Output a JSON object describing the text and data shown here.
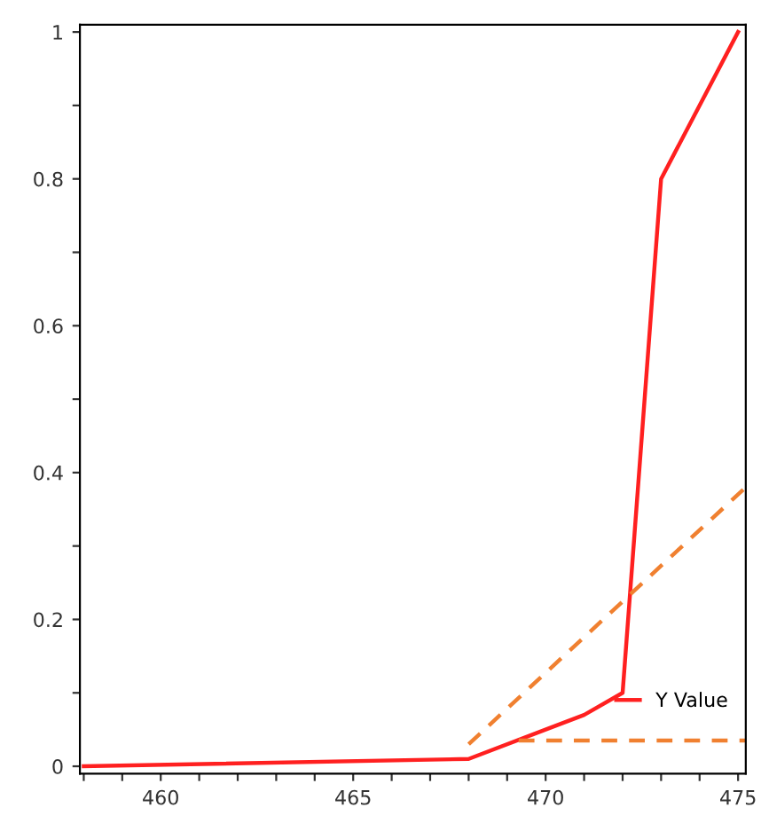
{
  "chart_data": {
    "type": "line",
    "xlim": [
      457.9,
      475.2
    ],
    "ylim": [
      -0.01,
      1.01
    ],
    "xticks": [
      {
        "value": 458,
        "label": null
      },
      {
        "value": 459,
        "label": null
      },
      460,
      {
        "value": 461,
        "label": null
      },
      {
        "value": 462,
        "label": null
      },
      {
        "value": 463,
        "label": null
      },
      {
        "value": 464,
        "label": null
      },
      465,
      {
        "value": 466,
        "label": null
      },
      {
        "value": 467,
        "label": null
      },
      {
        "value": 468,
        "label": null
      },
      {
        "value": 469,
        "label": null
      },
      470,
      {
        "value": 471,
        "label": null
      },
      {
        "value": 472,
        "label": null
      },
      {
        "value": 473,
        "label": null
      },
      {
        "value": 474,
        "label": null
      },
      475
    ],
    "yticks": [
      0,
      {
        "value": 0.1,
        "label": null
      },
      0.2,
      {
        "value": 0.3,
        "label": null
      },
      0.4,
      {
        "value": 0.5,
        "label": null
      },
      0.6,
      {
        "value": 0.7,
        "label": null
      },
      0.8,
      {
        "value": 0.9,
        "label": null
      },
      1
    ],
    "grid": false,
    "legend": "bottom right",
    "marker": "none",
    "series": [
      {
        "name": "Y Value",
        "color": "#ff2020",
        "line_style": "solid",
        "x": [
          458,
          468,
          470,
          471,
          472,
          473,
          475
        ],
        "values": [
          0,
          0.01,
          0.05,
          0.07,
          0.1,
          0.8,
          1
        ]
      },
      {
        "color": "#f08030",
        "line_style": "dashed",
        "x": [
          468,
          475.2
        ],
        "values": [
          0.03,
          0.38
        ]
      },
      {
        "color": "#f08030",
        "line_style": "dashed",
        "x": [
          469.3,
          475.2
        ],
        "values": [
          0.035,
          0.035
        ]
      }
    ]
  }
}
